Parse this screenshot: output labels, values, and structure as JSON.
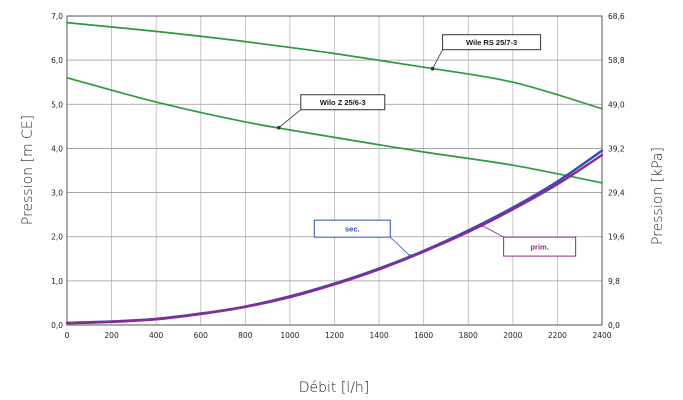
{
  "chart_data": {
    "type": "line",
    "xlabel": "Débit [l/h]",
    "ylabel": "Pression [m CE]",
    "y2label": "Pression [kPa]",
    "xlim": [
      0,
      2400
    ],
    "ylim": [
      0,
      7
    ],
    "x_ticks": [
      "0",
      "200",
      "400",
      "600",
      "800",
      "1000",
      "1200",
      "1400",
      "1600",
      "1800",
      "2000",
      "2200",
      "2400"
    ],
    "y_ticks": [
      "0,0",
      "1,0",
      "2,0",
      "3,0",
      "4,0",
      "5,0",
      "6,0",
      "7,0"
    ],
    "y2_ticks": [
      "0,0",
      "9,8",
      "19,6",
      "29,4",
      "39,2",
      "49,0",
      "58,8",
      "68,6"
    ],
    "grid": true,
    "series": [
      {
        "name": "Wile RS 25/7-3",
        "color": "#2e9a3a",
        "x": [
          0,
          400,
          800,
          1200,
          1600,
          2000,
          2400
        ],
        "y": [
          6.85,
          6.65,
          6.42,
          6.15,
          5.84,
          5.5,
          4.9
        ]
      },
      {
        "name": "Wilo Z 25/6-3",
        "color": "#2e9a3a",
        "x": [
          0,
          400,
          800,
          1200,
          1600,
          2000,
          2400
        ],
        "y": [
          5.6,
          5.05,
          4.6,
          4.25,
          3.92,
          3.62,
          3.22
        ]
      },
      {
        "name": "sec.",
        "color": "#2b4fb4",
        "x": [
          0,
          200,
          400,
          600,
          800,
          1000,
          1200,
          1400,
          1600,
          1800,
          2000,
          2200,
          2400
        ],
        "y": [
          0.05,
          0.08,
          0.14,
          0.26,
          0.42,
          0.65,
          0.94,
          1.28,
          1.68,
          2.14,
          2.66,
          3.25,
          3.95
        ]
      },
      {
        "name": "prim.",
        "color": "#8a2b8f",
        "x": [
          0,
          200,
          400,
          600,
          800,
          1000,
          1200,
          1400,
          1600,
          1800,
          2000,
          2200,
          2400
        ],
        "y": [
          0.04,
          0.07,
          0.13,
          0.25,
          0.41,
          0.63,
          0.92,
          1.26,
          1.66,
          2.11,
          2.62,
          3.19,
          3.85
        ]
      }
    ],
    "callouts": [
      {
        "label": "Wile RS 25/7-3",
        "series": 0,
        "anchor_x": 1640,
        "color": "#1a1a1a",
        "border": "#333333"
      },
      {
        "label": "Wilo Z 25/6-3",
        "series": 1,
        "anchor_x": 950,
        "color": "#1a1a1a",
        "border": "#333333"
      },
      {
        "label": "sec.",
        "series": 2,
        "anchor_x": 1540,
        "color": "#2b4fb4",
        "border": "#2b4fb4"
      },
      {
        "label": "prim.",
        "series": 3,
        "anchor_x": 1860,
        "color": "#8a2b8f",
        "border": "#8a2b8f"
      }
    ]
  }
}
